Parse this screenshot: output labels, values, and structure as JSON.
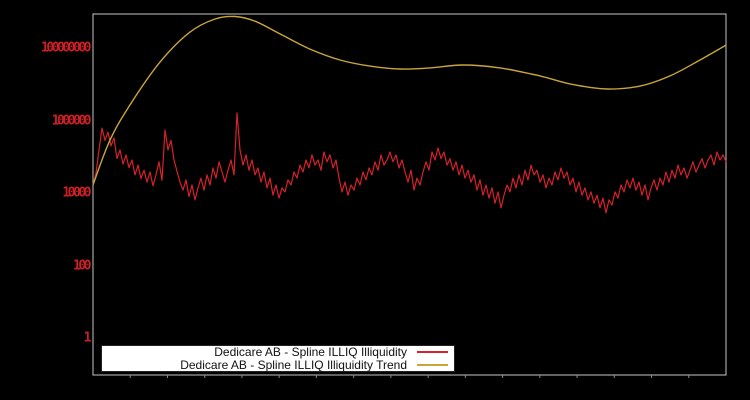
{
  "window": {
    "background": "#000000"
  },
  "colors": {
    "plot_border": "#c6c6c6",
    "tick": "#8a8a8a",
    "axis_label_red": "#cc2026",
    "legend_bg": "#ffffff",
    "legend_border": "#222222"
  },
  "chart_data": {
    "type": "line",
    "title": "",
    "xlabel": "",
    "ylabel": "",
    "y_scale": "log",
    "grid": false,
    "legend_position": "bottom-center",
    "ylim": [
      0.1,
      870000000
    ],
    "y_ticks": [
      {
        "value": 1,
        "label": "1"
      },
      {
        "value": 100,
        "label": "100"
      },
      {
        "value": 10000,
        "label": "10000"
      },
      {
        "value": 1000000,
        "label": "1000000"
      },
      {
        "value": 100000000,
        "label": "100000000"
      }
    ],
    "x_axis": {
      "labels_visible": false,
      "tick_count": 17
    },
    "series": [
      {
        "name": "Dedicare AB - Spline ILLIQ Illiquidity",
        "color": "#d7212b",
        "style": "jagged",
        "points_log10": [
          [
            0,
            4.22
          ],
          [
            3,
            4.55
          ],
          [
            6,
            5.19
          ],
          [
            9,
            5.79
          ],
          [
            12,
            5.45
          ],
          [
            15,
            5.68
          ],
          [
            18,
            5.3
          ],
          [
            21,
            5.52
          ],
          [
            24,
            4.95
          ],
          [
            27,
            5.19
          ],
          [
            30,
            4.8
          ],
          [
            33,
            5.05
          ],
          [
            36,
            4.7
          ],
          [
            39,
            4.91
          ],
          [
            42,
            4.5
          ],
          [
            45,
            4.77
          ],
          [
            48,
            4.4
          ],
          [
            51,
            4.63
          ],
          [
            54,
            4.3
          ],
          [
            57,
            4.58
          ],
          [
            60,
            4.2
          ],
          [
            63,
            4.5
          ],
          [
            66,
            4.86
          ],
          [
            69,
            4.35
          ],
          [
            72,
            5.74
          ],
          [
            75,
            5.19
          ],
          [
            78,
            5.45
          ],
          [
            81,
            4.91
          ],
          [
            84,
            4.6
          ],
          [
            87,
            4.3
          ],
          [
            90,
            4.08
          ],
          [
            93,
            4.36
          ],
          [
            96,
            3.9
          ],
          [
            99,
            4.22
          ],
          [
            102,
            3.81
          ],
          [
            105,
            4.14
          ],
          [
            108,
            4.41
          ],
          [
            111,
            4.08
          ],
          [
            114,
            4.5
          ],
          [
            117,
            4.22
          ],
          [
            120,
            4.69
          ],
          [
            123,
            4.41
          ],
          [
            126,
            4.86
          ],
          [
            129,
            4.58
          ],
          [
            132,
            4.3
          ],
          [
            135,
            4.63
          ],
          [
            138,
            4.91
          ],
          [
            141,
            4.5
          ],
          [
            144,
            6.21
          ],
          [
            147,
            5.19
          ],
          [
            150,
            4.77
          ],
          [
            153,
            5.05
          ],
          [
            156,
            4.63
          ],
          [
            159,
            4.91
          ],
          [
            162,
            4.5
          ],
          [
            165,
            4.69
          ],
          [
            168,
            4.3
          ],
          [
            171,
            4.58
          ],
          [
            174,
            4.14
          ],
          [
            177,
            4.41
          ],
          [
            180,
            3.94
          ],
          [
            183,
            4.22
          ],
          [
            186,
            3.86
          ],
          [
            189,
            4.14
          ],
          [
            192,
            4.03
          ],
          [
            195,
            4.36
          ],
          [
            198,
            4.22
          ],
          [
            201,
            4.58
          ],
          [
            204,
            4.41
          ],
          [
            207,
            4.77
          ],
          [
            210,
            4.58
          ],
          [
            213,
            4.91
          ],
          [
            216,
            4.69
          ],
          [
            219,
            5.05
          ],
          [
            222,
            4.77
          ],
          [
            225,
            4.91
          ],
          [
            228,
            4.63
          ],
          [
            231,
            5.13
          ],
          [
            234,
            4.86
          ],
          [
            237,
            5.05
          ],
          [
            240,
            4.69
          ],
          [
            243,
            4.91
          ],
          [
            246,
            4.41
          ],
          [
            249,
            4.03
          ],
          [
            252,
            4.3
          ],
          [
            255,
            3.94
          ],
          [
            258,
            4.22
          ],
          [
            261,
            4.08
          ],
          [
            264,
            4.41
          ],
          [
            267,
            4.22
          ],
          [
            270,
            4.58
          ],
          [
            273,
            4.36
          ],
          [
            276,
            4.69
          ],
          [
            279,
            4.5
          ],
          [
            282,
            4.86
          ],
          [
            285,
            4.63
          ],
          [
            288,
            5.05
          ],
          [
            291,
            4.77
          ],
          [
            294,
            4.91
          ],
          [
            297,
            5.13
          ],
          [
            300,
            4.86
          ],
          [
            303,
            5.05
          ],
          [
            306,
            4.69
          ],
          [
            309,
            4.91
          ],
          [
            312,
            4.58
          ],
          [
            315,
            4.3
          ],
          [
            318,
            4.63
          ],
          [
            321,
            4.08
          ],
          [
            324,
            4.41
          ],
          [
            327,
            4.22
          ],
          [
            330,
            4.58
          ],
          [
            333,
            4.86
          ],
          [
            336,
            4.63
          ],
          [
            339,
            5.13
          ],
          [
            342,
            4.91
          ],
          [
            345,
            5.24
          ],
          [
            348,
            4.95
          ],
          [
            351,
            5.13
          ],
          [
            354,
            4.77
          ],
          [
            357,
            4.95
          ],
          [
            360,
            4.63
          ],
          [
            363,
            4.86
          ],
          [
            366,
            4.5
          ],
          [
            369,
            4.77
          ],
          [
            372,
            4.41
          ],
          [
            375,
            4.63
          ],
          [
            378,
            4.3
          ],
          [
            381,
            4.5
          ],
          [
            384,
            4.08
          ],
          [
            387,
            4.36
          ],
          [
            390,
            3.94
          ],
          [
            393,
            4.22
          ],
          [
            396,
            3.86
          ],
          [
            399,
            4.14
          ],
          [
            402,
            3.72
          ],
          [
            405,
            4.03
          ],
          [
            408,
            3.59
          ],
          [
            411,
            3.94
          ],
          [
            414,
            4.22
          ],
          [
            417,
            4.03
          ],
          [
            420,
            4.41
          ],
          [
            423,
            4.14
          ],
          [
            426,
            4.5
          ],
          [
            429,
            4.22
          ],
          [
            432,
            4.63
          ],
          [
            435,
            4.36
          ],
          [
            438,
            4.77
          ],
          [
            441,
            4.5
          ],
          [
            444,
            4.63
          ],
          [
            447,
            4.3
          ],
          [
            450,
            4.5
          ],
          [
            453,
            4.14
          ],
          [
            456,
            4.41
          ],
          [
            459,
            4.22
          ],
          [
            462,
            4.58
          ],
          [
            465,
            4.36
          ],
          [
            468,
            4.69
          ],
          [
            471,
            4.41
          ],
          [
            474,
            4.58
          ],
          [
            477,
            4.22
          ],
          [
            480,
            4.41
          ],
          [
            483,
            4.03
          ],
          [
            486,
            4.3
          ],
          [
            489,
            3.94
          ],
          [
            492,
            4.14
          ],
          [
            495,
            3.81
          ],
          [
            498,
            4.03
          ],
          [
            501,
            3.72
          ],
          [
            504,
            3.94
          ],
          [
            507,
            3.59
          ],
          [
            510,
            3.86
          ],
          [
            513,
            3.45
          ],
          [
            516,
            3.81
          ],
          [
            519,
            3.67
          ],
          [
            522,
            4.03
          ],
          [
            525,
            3.86
          ],
          [
            528,
            4.22
          ],
          [
            531,
            4.03
          ],
          [
            534,
            4.36
          ],
          [
            537,
            4.14
          ],
          [
            540,
            4.41
          ],
          [
            543,
            4.08
          ],
          [
            546,
            4.3
          ],
          [
            549,
            3.94
          ],
          [
            552,
            4.22
          ],
          [
            555,
            3.81
          ],
          [
            558,
            4.14
          ],
          [
            561,
            4.36
          ],
          [
            564,
            4.08
          ],
          [
            567,
            4.41
          ],
          [
            570,
            4.22
          ],
          [
            573,
            4.58
          ],
          [
            576,
            4.3
          ],
          [
            579,
            4.63
          ],
          [
            582,
            4.41
          ],
          [
            585,
            4.77
          ],
          [
            588,
            4.5
          ],
          [
            591,
            4.69
          ],
          [
            594,
            4.41
          ],
          [
            597,
            4.63
          ],
          [
            600,
            4.86
          ],
          [
            603,
            4.58
          ],
          [
            606,
            4.77
          ],
          [
            609,
            4.95
          ],
          [
            612,
            4.69
          ],
          [
            615,
            4.91
          ],
          [
            618,
            5.05
          ],
          [
            621,
            4.77
          ],
          [
            624,
            5.13
          ],
          [
            627,
            4.91
          ],
          [
            630,
            5.05
          ],
          [
            633,
            4.86
          ]
        ]
      },
      {
        "name": "Dedicare AB - Spline ILLIQ Illiquidity Trend",
        "color": "#c8a63a",
        "style": "smooth",
        "points_log10": [
          [
            0,
            4.22
          ],
          [
            17,
            5.46
          ],
          [
            37,
            6.43
          ],
          [
            67,
            7.61
          ],
          [
            97,
            8.44
          ],
          [
            122,
            8.8
          ],
          [
            142,
            8.87
          ],
          [
            162,
            8.74
          ],
          [
            187,
            8.39
          ],
          [
            217,
            7.97
          ],
          [
            247,
            7.67
          ],
          [
            277,
            7.5
          ],
          [
            307,
            7.42
          ],
          [
            337,
            7.45
          ],
          [
            370,
            7.53
          ],
          [
            407,
            7.45
          ],
          [
            447,
            7.23
          ],
          [
            477,
            7.01
          ],
          [
            514,
            6.87
          ],
          [
            547,
            6.95
          ],
          [
            577,
            7.23
          ],
          [
            607,
            7.67
          ],
          [
            633,
            8.08
          ]
        ]
      }
    ]
  }
}
